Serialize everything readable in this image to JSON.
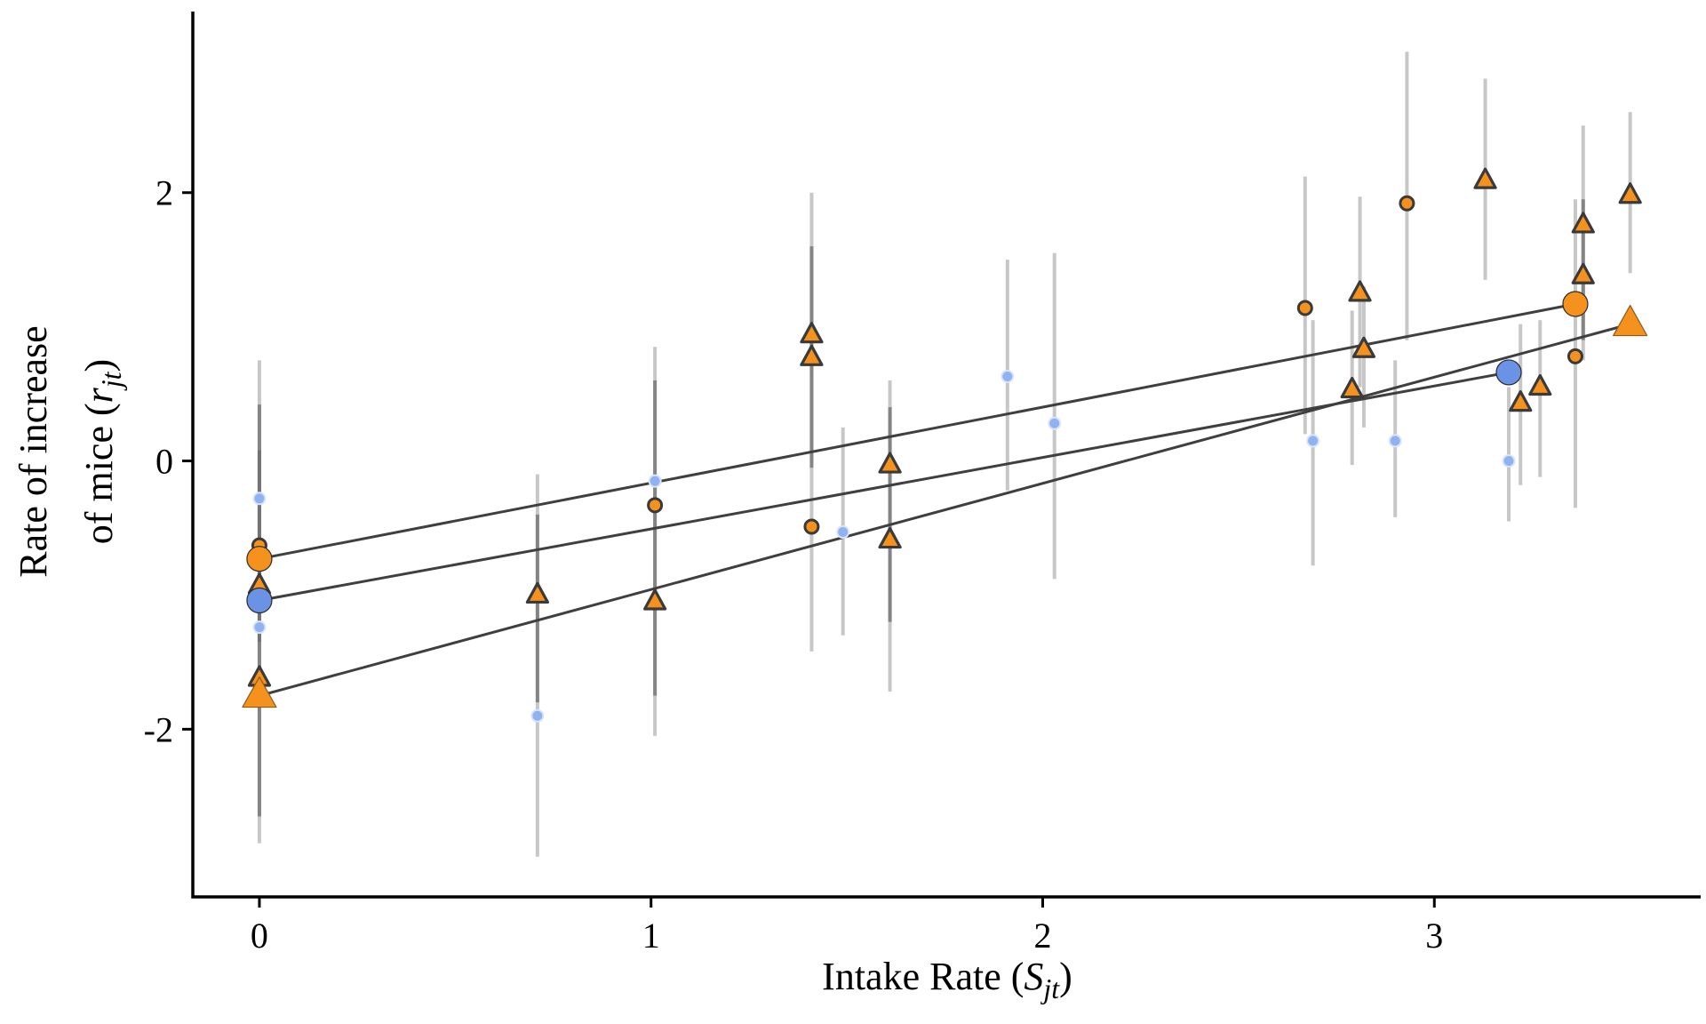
{
  "chart_data": {
    "type": "scatter",
    "title": "",
    "xlabel_main": "Intake Rate (",
    "xlabel_var": "S",
    "xlabel_sub": "jt",
    "xlabel_close": ")",
    "ylabel_line1": "Rate of increase",
    "ylabel_line2_main": "of mice (",
    "ylabel_line2_var": "r",
    "ylabel_line2_sub": "jt",
    "ylabel_line2_close": ")",
    "xlim": [
      -0.17,
      3.68
    ],
    "ylim": [
      -3.25,
      3.35
    ],
    "xticks": [
      0,
      1,
      2,
      3
    ],
    "yticks": [
      -2,
      0,
      2
    ],
    "x_tick_labels": [
      "0",
      "1",
      "2",
      "3"
    ],
    "y_tick_labels": [
      "-2",
      "0",
      "2"
    ],
    "grid": false,
    "legend": "none",
    "colors": {
      "orange": "#F5921E",
      "blue": "#6A93E6",
      "light_blue": "#8FB2F0",
      "outline": "#3a3a3a"
    },
    "error_bars": [
      {
        "x": 0.0,
        "lo": -2.85,
        "hi": 0.75
      },
      {
        "x": 0.0,
        "lo": -2.65,
        "hi": 0.42,
        "dark": true
      },
      {
        "x": 0.0,
        "lo": -1.35,
        "hi": 0.08,
        "dark": true
      },
      {
        "x": 0.71,
        "lo": -2.95,
        "hi": -0.1
      },
      {
        "x": 0.71,
        "lo": -1.8,
        "hi": -0.4,
        "dark": true
      },
      {
        "x": 1.01,
        "lo": -2.05,
        "hi": 0.85
      },
      {
        "x": 1.01,
        "lo": -1.75,
        "hi": 0.6,
        "dark": true
      },
      {
        "x": 1.41,
        "lo": -1.42,
        "hi": 2.0
      },
      {
        "x": 1.41,
        "lo": -0.05,
        "hi": 1.6,
        "dark": true
      },
      {
        "x": 1.49,
        "lo": -1.3,
        "hi": 0.25
      },
      {
        "x": 1.61,
        "lo": -1.72,
        "hi": 0.6
      },
      {
        "x": 1.61,
        "lo": -1.2,
        "hi": 0.4,
        "dark": true
      },
      {
        "x": 1.91,
        "lo": -0.22,
        "hi": 1.5
      },
      {
        "x": 2.03,
        "lo": -0.88,
        "hi": 1.55
      },
      {
        "x": 2.67,
        "lo": 0.2,
        "hi": 2.12
      },
      {
        "x": 2.69,
        "lo": -0.78,
        "hi": 1.05
      },
      {
        "x": 2.79,
        "lo": -0.03,
        "hi": 1.12
      },
      {
        "x": 2.81,
        "lo": 0.55,
        "hi": 1.97
      },
      {
        "x": 2.82,
        "lo": 0.25,
        "hi": 1.3
      },
      {
        "x": 2.9,
        "lo": -0.42,
        "hi": 0.75
      },
      {
        "x": 2.93,
        "lo": 0.9,
        "hi": 3.05
      },
      {
        "x": 3.13,
        "lo": 1.35,
        "hi": 2.85
      },
      {
        "x": 3.19,
        "lo": -0.45,
        "hi": 0.55
      },
      {
        "x": 3.22,
        "lo": -0.18,
        "hi": 1.02
      },
      {
        "x": 3.27,
        "lo": -0.12,
        "hi": 1.05
      },
      {
        "x": 3.36,
        "lo": -0.35,
        "hi": 1.95
      },
      {
        "x": 3.38,
        "lo": 0.75,
        "hi": 2.5
      },
      {
        "x": 3.38,
        "lo": 0.9,
        "hi": 1.95,
        "dark": true
      },
      {
        "x": 3.5,
        "lo": 1.4,
        "hi": 2.6
      }
    ],
    "series": [
      {
        "shape": "circle",
        "group": "orange",
        "size": "small",
        "points": [
          {
            "x": 0.0,
            "y": -0.63
          },
          {
            "x": 1.01,
            "y": -0.33
          },
          {
            "x": 1.41,
            "y": -0.49
          },
          {
            "x": 2.67,
            "y": 1.14
          },
          {
            "x": 2.93,
            "y": 1.92
          },
          {
            "x": 3.36,
            "y": 0.78
          }
        ]
      },
      {
        "shape": "triangle",
        "group": "orange",
        "size": "small",
        "points": [
          {
            "x": 0.0,
            "y": -0.93
          },
          {
            "x": 0.0,
            "y": -1.62
          },
          {
            "x": 0.71,
            "y": -1.0
          },
          {
            "x": 1.01,
            "y": -1.05
          },
          {
            "x": 1.41,
            "y": 0.94
          },
          {
            "x": 1.41,
            "y": 0.77
          },
          {
            "x": 1.61,
            "y": -0.03
          },
          {
            "x": 1.61,
            "y": -0.59
          },
          {
            "x": 2.79,
            "y": 0.53
          },
          {
            "x": 2.81,
            "y": 1.25
          },
          {
            "x": 2.82,
            "y": 0.83
          },
          {
            "x": 3.13,
            "y": 2.09
          },
          {
            "x": 3.22,
            "y": 0.43
          },
          {
            "x": 3.27,
            "y": 0.55
          },
          {
            "x": 3.38,
            "y": 1.76
          },
          {
            "x": 3.38,
            "y": 1.38
          },
          {
            "x": 3.5,
            "y": 1.98
          }
        ]
      },
      {
        "shape": "circle",
        "group": "light_blue",
        "size": "small",
        "points": [
          {
            "x": 0.0,
            "y": -0.28
          },
          {
            "x": 0.0,
            "y": -1.24
          },
          {
            "x": 0.71,
            "y": -1.9
          },
          {
            "x": 1.01,
            "y": -0.15
          },
          {
            "x": 1.49,
            "y": -0.53
          },
          {
            "x": 1.91,
            "y": 0.63
          },
          {
            "x": 2.03,
            "y": 0.28
          },
          {
            "x": 2.69,
            "y": 0.15
          },
          {
            "x": 2.9,
            "y": 0.15
          },
          {
            "x": 3.19,
            "y": 0.0
          }
        ]
      },
      {
        "shape": "circle",
        "group": "orange",
        "size": "large",
        "points": [
          {
            "x": 0.0,
            "y": -0.73
          },
          {
            "x": 3.36,
            "y": 1.17
          }
        ]
      },
      {
        "shape": "circle",
        "group": "blue",
        "size": "large",
        "points": [
          {
            "x": 0.0,
            "y": -1.04
          },
          {
            "x": 3.19,
            "y": 0.66
          }
        ]
      },
      {
        "shape": "triangle",
        "group": "orange",
        "size": "large",
        "points": [
          {
            "x": 0.0,
            "y": -1.75
          },
          {
            "x": 3.5,
            "y": 1.02
          }
        ]
      }
    ],
    "fit_lines": [
      {
        "x1": 0.0,
        "y1": -0.73,
        "x2": 3.36,
        "y2": 1.17
      },
      {
        "x1": 0.0,
        "y1": -1.04,
        "x2": 3.19,
        "y2": 0.66
      },
      {
        "x1": 0.0,
        "y1": -1.75,
        "x2": 3.5,
        "y2": 1.02
      }
    ]
  }
}
